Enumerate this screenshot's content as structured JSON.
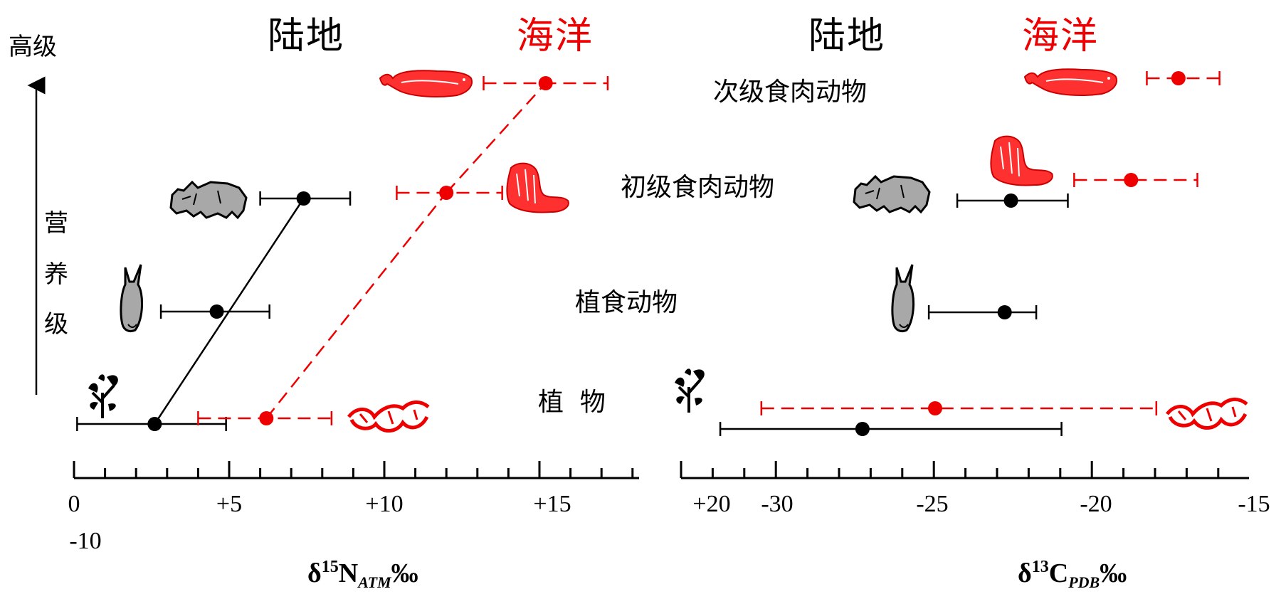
{
  "headers": {
    "land": "陆地",
    "sea": "海洋",
    "land_color": "#000000",
    "sea_color": "#ee0000"
  },
  "side": {
    "top_label": "高级",
    "trophic_chars": [
      "营",
      "养",
      "级"
    ]
  },
  "levels": {
    "secondary": "次级食肉动物",
    "primary": "初级食肉动物",
    "herbivore": "植食动物",
    "plant": "植  物"
  },
  "colors": {
    "land": "#000000",
    "sea": "#ee0000",
    "land_fill": "#a8a8a8",
    "sea_fill": "#ff3030"
  },
  "icons": {
    "whale": "whale-icon",
    "wolf": "wolf-icon",
    "sea_lion": "sea-lion-icon",
    "rabbit": "rabbit-icon",
    "plant": "plant-icon",
    "seaweed": "seaweed-icon"
  },
  "chart_data": [
    {
      "type": "scatter",
      "title": "",
      "xlabel": {
        "delta": "δ",
        "sup": "15",
        "main": "N",
        "sub": "ATM",
        "unit": "‰"
      },
      "ylabel": "营养级",
      "xlim": [
        0,
        18.5
      ],
      "tick_labels": [
        "0",
        "+5",
        "+10",
        "+15"
      ],
      "extra_tick_label": "-10",
      "categories": [
        "植物",
        "植食动物",
        "初级食肉动物",
        "次级食肉动物"
      ],
      "series": [
        {
          "name": "陆地",
          "color": "#000000",
          "points": [
            {
              "level": "植物",
              "x": 2.6,
              "xmin": 0.1,
              "xmax": 4.9
            },
            {
              "level": "植食动物",
              "x": 4.6,
              "xmin": 2.8,
              "xmax": 6.3
            },
            {
              "level": "初级食肉动物",
              "x": 7.4,
              "xmin": 6.0,
              "xmax": 8.9
            }
          ]
        },
        {
          "name": "海洋",
          "color": "#ee0000",
          "points": [
            {
              "level": "植物",
              "x": 6.2,
              "xmin": 4.0,
              "xmax": 8.3
            },
            {
              "level": "初级食肉动物",
              "x": 12.0,
              "xmin": 10.4,
              "xmax": 13.8
            },
            {
              "level": "次级食肉动物",
              "x": 15.2,
              "xmin": 13.2,
              "xmax": 17.2
            }
          ]
        }
      ]
    },
    {
      "type": "scatter",
      "title": "",
      "xlabel": {
        "delta": "δ",
        "sup": "13",
        "main": "C",
        "sub": "PDB",
        "unit": "‰"
      },
      "ylabel": "营养级",
      "xlim": [
        -32,
        -15
      ],
      "tick_labels": [
        "+20",
        "-30",
        "-25",
        "-20",
        "-15"
      ],
      "categories": [
        "植物",
        "植食动物",
        "初级食肉动物",
        "次级食肉动物"
      ],
      "series": [
        {
          "name": "陆地",
          "color": "#000000",
          "points": [
            {
              "level": "植物",
              "x": -27.3,
              "xmin": -31.8,
              "xmax": -21.0
            },
            {
              "level": "植食动物",
              "x": -22.8,
              "xmin": -25.2,
              "xmax": -21.8
            },
            {
              "level": "初级食肉动物",
              "x": -22.6,
              "xmin": -24.3,
              "xmax": -20.8
            }
          ]
        },
        {
          "name": "海洋",
          "color": "#ee0000",
          "points": [
            {
              "level": "植物",
              "x": -25.0,
              "xmin": -30.5,
              "xmax": -18.0
            },
            {
              "level": "初级食肉动物",
              "x": -18.8,
              "xmin": -20.6,
              "xmax": -16.7
            },
            {
              "level": "次级食肉动物",
              "x": -17.3,
              "xmin": -18.3,
              "xmax": -16.0
            }
          ]
        }
      ]
    }
  ]
}
